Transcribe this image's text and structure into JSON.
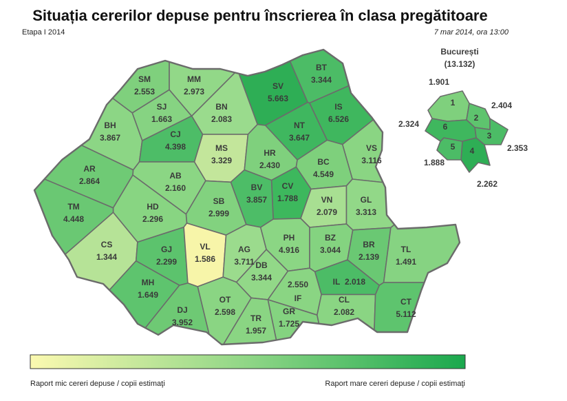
{
  "header": {
    "title": "Situația cererilor depuse pentru înscrierea în clasa pregătitoare",
    "stage": "Etapa I 2014",
    "date": "7 mar 2014, ora 13:00"
  },
  "counties": [
    {
      "code": "SM",
      "value": "2.553",
      "color": "#7fd07d"
    },
    {
      "code": "MM",
      "value": "2.973",
      "color": "#92d888"
    },
    {
      "code": "BT",
      "value": "3.344",
      "color": "#4cbc66"
    },
    {
      "code": "SV",
      "value": "5.663",
      "color": "#2eae55"
    },
    {
      "code": "BN",
      "value": "2.083",
      "color": "#9adb8d"
    },
    {
      "code": "IS",
      "value": "6.526",
      "color": "#3fb75e"
    },
    {
      "code": "SJ",
      "value": "1.663",
      "color": "#86d382"
    },
    {
      "code": "BH",
      "value": "3.867",
      "color": "#8cd685"
    },
    {
      "code": "CJ",
      "value": "4.398",
      "color": "#4dbd67"
    },
    {
      "code": "NT",
      "value": "3.647",
      "color": "#3fb75f"
    },
    {
      "code": "MS",
      "value": "3.329",
      "color": "#c3e69b"
    },
    {
      "code": "HR",
      "value": "2.430",
      "color": "#7fd07d"
    },
    {
      "code": "VS",
      "value": "3.116",
      "color": "#8ad583"
    },
    {
      "code": "BC",
      "value": "4.549",
      "color": "#7ed07c"
    },
    {
      "code": "AR",
      "value": "2.864",
      "color": "#6fca75"
    },
    {
      "code": "AB",
      "value": "2.160",
      "color": "#8bd684"
    },
    {
      "code": "CV",
      "value": "1.788",
      "color": "#3db85d"
    },
    {
      "code": "BV",
      "value": "3.857",
      "color": "#4dbd67"
    },
    {
      "code": "SB",
      "value": "2.999",
      "color": "#82d27f"
    },
    {
      "code": "HD",
      "value": "2.296",
      "color": "#88d582"
    },
    {
      "code": "VN",
      "value": "2.079",
      "color": "#a8df92"
    },
    {
      "code": "GL",
      "value": "3.313",
      "color": "#92d888"
    },
    {
      "code": "TM",
      "value": "4.448",
      "color": "#6ac873"
    },
    {
      "code": "CS",
      "value": "1.344",
      "color": "#b6e397"
    },
    {
      "code": "GJ",
      "value": "2.299",
      "color": "#5cc36d"
    },
    {
      "code": "VL",
      "value": "1.586",
      "color": "#f7f5a9"
    },
    {
      "code": "AG",
      "value": "3.711",
      "color": "#9bdb8d"
    },
    {
      "code": "PH",
      "value": "4.916",
      "color": "#8bd684"
    },
    {
      "code": "BZ",
      "value": "3.044",
      "color": "#84d380"
    },
    {
      "code": "BR",
      "value": "2.139",
      "color": "#6ac873"
    },
    {
      "code": "TL",
      "value": "1.491",
      "color": "#86d382"
    },
    {
      "code": "DB",
      "value": "3.344",
      "color": "#92d888"
    },
    {
      "code": "MH",
      "value": "1.649",
      "color": "#5ec46e"
    },
    {
      "code": "IL",
      "value": "2.018",
      "color": "#4cbc66"
    },
    {
      "code": "OT",
      "value": "2.598",
      "color": "#8ad583"
    },
    {
      "code": "IF",
      "value": "2.550",
      "color": "#8ad583"
    },
    {
      "code": "DJ",
      "value": "3.952",
      "color": "#6ec974"
    },
    {
      "code": "GR",
      "value": "1.725",
      "color": "#84d380"
    },
    {
      "code": "CL",
      "value": "2.082",
      "color": "#8ad583"
    },
    {
      "code": "TR",
      "value": "1.957",
      "color": "#8ad583"
    },
    {
      "code": "CT",
      "value": "5.112",
      "color": "#5ec46e"
    }
  ],
  "bucharest": {
    "title": "București",
    "total": "(13.132)",
    "sectors": [
      {
        "label": "1",
        "value": "1.901",
        "color": "#7fd07d"
      },
      {
        "label": "2",
        "value": "2.404",
        "color": "#5ec46e"
      },
      {
        "label": "3",
        "value": "2.353",
        "color": "#4cbc66"
      },
      {
        "label": "4",
        "value": "2.262",
        "color": "#2eae55"
      },
      {
        "label": "5",
        "value": "1.888",
        "color": "#4cbc66"
      },
      {
        "label": "6",
        "value": "2.324",
        "color": "#3fb75e"
      }
    ]
  },
  "legend": {
    "low": "Raport mic cereri depuse / copii estimaţi",
    "high": "Raport mare cereri depuse / copii estimaţi"
  }
}
